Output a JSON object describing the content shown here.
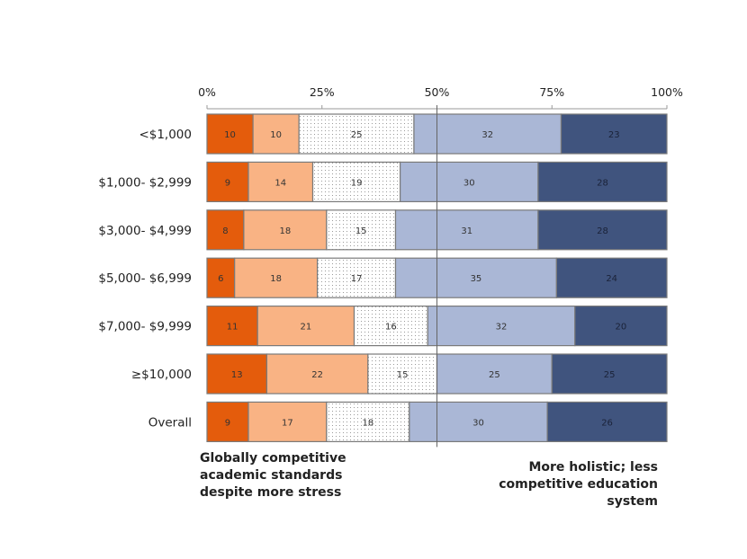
{
  "chart_data": {
    "type": "bar",
    "orientation": "horizontal",
    "stacked": true,
    "categories": [
      "<$1,000",
      "$1,000- $2,999",
      "$3,000- $4,999",
      "$5,000- $6,999",
      "$7,000- $9,999",
      "≥$10,000",
      "Overall"
    ],
    "series": [
      {
        "values": [
          10,
          9,
          8,
          6,
          11,
          13,
          9
        ],
        "color": "#e45c0c"
      },
      {
        "values": [
          10,
          14,
          18,
          18,
          21,
          22,
          17
        ],
        "color": "#f9b384"
      },
      {
        "values": [
          25,
          19,
          15,
          17,
          16,
          15,
          18
        ],
        "color": "#ffffff",
        "pattern": "dotted"
      },
      {
        "values": [
          32,
          30,
          31,
          35,
          32,
          25,
          30
        ],
        "color": "#aab7d6"
      },
      {
        "values": [
          23,
          28,
          28,
          24,
          20,
          25,
          26
        ],
        "color": "#40547e"
      }
    ],
    "xaxis": {
      "position": "top",
      "range": [
        0,
        100
      ],
      "ticks": [
        "0%",
        "25%",
        "50%",
        "75%",
        "100%"
      ]
    },
    "reference_line": 50,
    "data_labels": true,
    "grid": false,
    "legend": "none",
    "annotations": {
      "left": "Globally competitive\nacademic standards\ndespite more stress",
      "right": "More holistic; less\ncompetitive education\nsystem"
    }
  }
}
